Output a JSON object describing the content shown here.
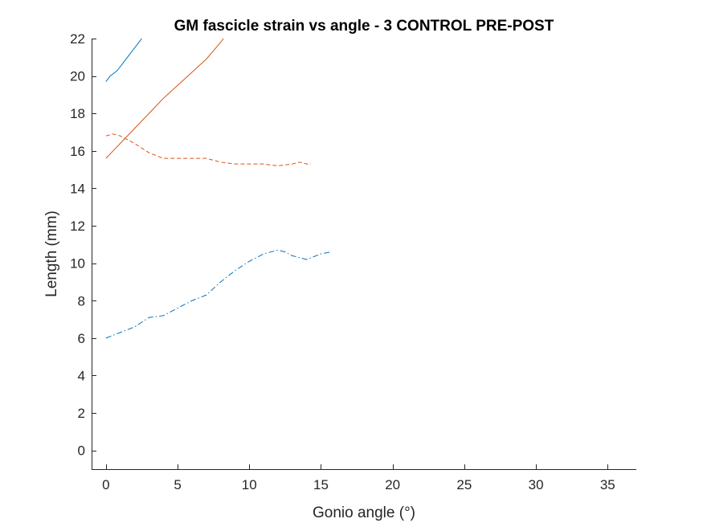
{
  "chart_data": {
    "type": "line",
    "title": "GM fascicle strain vs angle - 3 CONTROL PRE-POST",
    "xlabel": "Gonio angle (°)",
    "ylabel": "Length (mm)",
    "xlim": [
      -1,
      37
    ],
    "ylim": [
      -1,
      22
    ],
    "xticks": [
      0,
      5,
      10,
      15,
      20,
      25,
      30,
      35
    ],
    "yticks": [
      0,
      2,
      4,
      6,
      8,
      10,
      12,
      14,
      16,
      18,
      20,
      22
    ],
    "grid": false,
    "legend": null,
    "series": [
      {
        "color": "#0072BD",
        "dash": "solid",
        "points": [
          [
            0,
            19.7
          ],
          [
            0.3,
            20.0
          ],
          [
            0.8,
            20.3
          ],
          [
            1.3,
            20.8
          ],
          [
            1.8,
            21.3
          ],
          [
            2.3,
            21.8
          ],
          [
            2.5,
            22.0
          ]
        ]
      },
      {
        "color": "#D95319",
        "dash": "solid",
        "points": [
          [
            0,
            15.6
          ],
          [
            0.5,
            16.0
          ],
          [
            1.0,
            16.4
          ],
          [
            2.0,
            17.2
          ],
          [
            3.0,
            18.0
          ],
          [
            4.0,
            18.8
          ],
          [
            5.0,
            19.5
          ],
          [
            6.0,
            20.2
          ],
          [
            7.0,
            20.9
          ],
          [
            8.0,
            21.8
          ],
          [
            8.2,
            22.0
          ]
        ]
      },
      {
        "color": "#D95319",
        "dash": "dashed",
        "points": [
          [
            0,
            16.8
          ],
          [
            0.5,
            16.9
          ],
          [
            1.0,
            16.8
          ],
          [
            2.0,
            16.4
          ],
          [
            3.0,
            15.9
          ],
          [
            4.0,
            15.6
          ],
          [
            5.0,
            15.6
          ],
          [
            6.0,
            15.6
          ],
          [
            7.0,
            15.6
          ],
          [
            8.0,
            15.4
          ],
          [
            9.0,
            15.3
          ],
          [
            10.0,
            15.3
          ],
          [
            11.0,
            15.3
          ],
          [
            12.0,
            15.2
          ],
          [
            13.0,
            15.3
          ],
          [
            13.5,
            15.4
          ],
          [
            14.0,
            15.3
          ],
          [
            14.3,
            15.3
          ]
        ]
      },
      {
        "color": "#0072BD",
        "dash": "dashdot",
        "points": [
          [
            0,
            6.0
          ],
          [
            1.0,
            6.3
          ],
          [
            2.0,
            6.6
          ],
          [
            3.0,
            7.1
          ],
          [
            4.0,
            7.2
          ],
          [
            5.0,
            7.6
          ],
          [
            6.0,
            8.0
          ],
          [
            7.0,
            8.3
          ],
          [
            8.0,
            9.0
          ],
          [
            9.0,
            9.6
          ],
          [
            10.0,
            10.1
          ],
          [
            11.0,
            10.5
          ],
          [
            12.0,
            10.7
          ],
          [
            12.5,
            10.6
          ],
          [
            13.0,
            10.4
          ],
          [
            14.0,
            10.2
          ],
          [
            15.0,
            10.5
          ],
          [
            15.7,
            10.6
          ]
        ]
      }
    ]
  }
}
